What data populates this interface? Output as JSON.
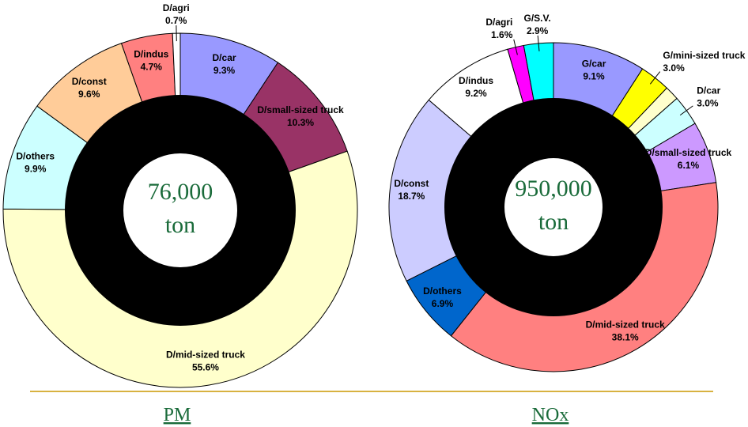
{
  "chart_data": [
    {
      "type": "donut",
      "title": "PM",
      "center_label": "76,000",
      "center_unit": "ton",
      "categories": [
        "D/car",
        "D/small-sized truck",
        "D/mid-sized truck",
        "D/others",
        "D/const",
        "D/indus",
        "D/agri"
      ],
      "values": [
        9.3,
        10.3,
        55.6,
        9.9,
        9.6,
        4.7,
        0.7
      ],
      "value_labels": [
        "9.3%",
        "10.3%",
        "55.6%",
        "9.9%",
        "9.6%",
        "4.7%",
        "0.7%"
      ],
      "colors": [
        "#9999ff",
        "#993366",
        "#ffffcc",
        "#ccffff",
        "#ffcc99",
        "#ff8080",
        "#ffffff"
      ]
    },
    {
      "type": "donut",
      "title": "NOx",
      "center_label": "950,000",
      "center_unit": "ton",
      "categories": [
        "G/car",
        "G/mini-sized truck",
        null,
        "D/car",
        "D/small-sized truck",
        "D/mid-sized truck",
        "D/others",
        "D/const",
        "D/indus",
        "D/agri",
        "G/S.V."
      ],
      "values": [
        9.1,
        3.0,
        1.4,
        3.0,
        6.1,
        38.1,
        6.9,
        18.7,
        9.2,
        1.6,
        2.9
      ],
      "value_labels": [
        "9.1%",
        "3.0%",
        null,
        "3.0%",
        "6.1%",
        "38.1%",
        "6.9%",
        "18.7%",
        "9.2%",
        "1.6%",
        "2.9%"
      ],
      "colors": [
        "#9999ff",
        "#ffff00",
        "#ffffcc",
        "#ccffff",
        "#cc99ff",
        "#ff8080",
        "#0066cc",
        "#ccccff",
        "#ffffff",
        "#ff00ff",
        "#00ffff"
      ]
    }
  ]
}
